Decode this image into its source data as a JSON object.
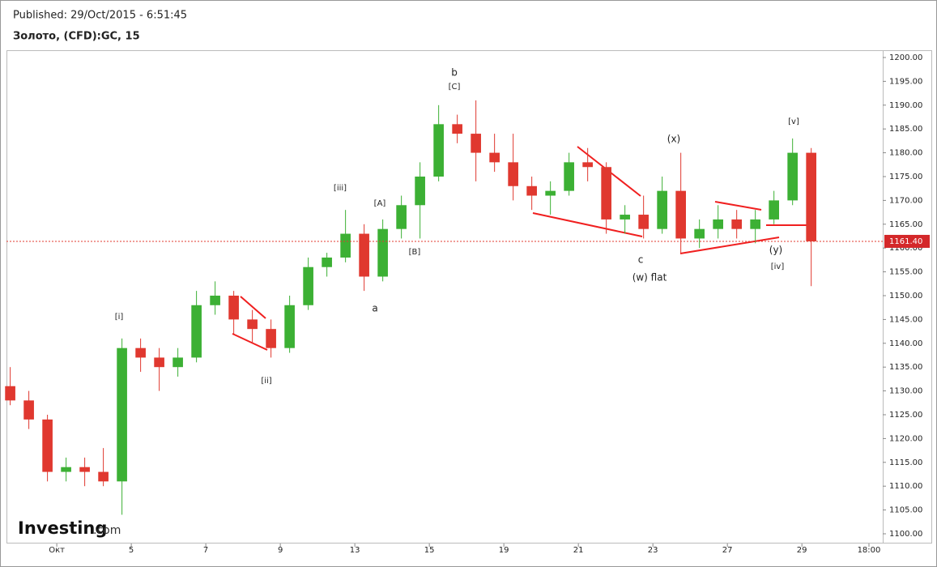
{
  "chart_data": {
    "type": "candlestick",
    "published": "Published: 29/Oct/2015 - 6:51:45",
    "title": "Золото, (CFD):GC, 15",
    "logo": {
      "name": "Investing",
      "suffix": ".com"
    },
    "up_color": "#3cb034",
    "down_color": "#e0382f",
    "x": [
      -1.25,
      -0.75,
      -0.25,
      0.25,
      0.75,
      1.25,
      1.75,
      2.25,
      2.75,
      3.25,
      3.75,
      4.25,
      4.75,
      5.25,
      5.75,
      6.25,
      6.75,
      7.25,
      7.75,
      8.25,
      8.75,
      9.25,
      9.75,
      10.25,
      10.75,
      11.25,
      11.75,
      12.25,
      12.75,
      13.25,
      13.75,
      14.25,
      14.75,
      15.25,
      15.75,
      16.25,
      16.75,
      17.25,
      17.75,
      18.25,
      18.75,
      19.25,
      19.75,
      20.25
    ],
    "open": [
      1131,
      1128,
      1124,
      1113,
      1114,
      1113,
      1111,
      1139,
      1137,
      1135,
      1137,
      1148,
      1150,
      1145,
      1143,
      1139,
      1148,
      1156,
      1158,
      1163,
      1154,
      1164,
      1169,
      1175,
      1186,
      1184,
      1180,
      1178,
      1173,
      1171,
      1172,
      1178,
      1177,
      1166,
      1167,
      1164,
      1172,
      1162,
      1164,
      1166,
      1164,
      1166,
      1170,
      1180
    ],
    "high": [
      1135,
      1130,
      1125,
      1116,
      1116,
      1118,
      1141,
      1141,
      1139,
      1139,
      1151,
      1153,
      1151,
      1147,
      1145,
      1150,
      1158,
      1159,
      1168,
      1165,
      1166,
      1171,
      1178,
      1190,
      1188,
      1191,
      1184,
      1184,
      1175,
      1174,
      1180,
      1181,
      1178,
      1169,
      1171,
      1175,
      1180,
      1166,
      1169,
      1168,
      1168,
      1172,
      1183,
      1181
    ],
    "low": [
      1127,
      1122,
      1111,
      1111,
      1110,
      1110,
      1104,
      1134,
      1130,
      1133,
      1136,
      1146,
      1142,
      1140,
      1137,
      1138,
      1147,
      1154,
      1157,
      1151,
      1153,
      1162,
      1162,
      1174,
      1182,
      1174,
      1176,
      1170,
      1168,
      1167,
      1171,
      1174,
      1163,
      1163,
      1162,
      1163,
      1159,
      1160,
      1162,
      1162,
      1161,
      1165,
      1169,
      1152
    ],
    "close": [
      1128,
      1124,
      1113,
      1114,
      1113,
      1111,
      1139,
      1137,
      1135,
      1137,
      1148,
      1150,
      1145,
      1143,
      1139,
      1148,
      1156,
      1158,
      1163,
      1154,
      1164,
      1169,
      1175,
      1186,
      1184,
      1180,
      1178,
      1173,
      1171,
      1172,
      1178,
      1177,
      1166,
      1167,
      1164,
      1172,
      1162,
      1164,
      1166,
      1164,
      1166,
      1170,
      1180,
      1161.4
    ],
    "last_price": {
      "value": 1161.4,
      "label": "1161.40"
    },
    "xlim": [
      -1.35,
      22.17
    ],
    "xticks": [
      {
        "value": 0,
        "label": "Окт"
      },
      {
        "value": 2,
        "label": "5"
      },
      {
        "value": 4,
        "label": "7"
      },
      {
        "value": 6,
        "label": "9"
      },
      {
        "value": 8,
        "label": "13"
      },
      {
        "value": 10,
        "label": "15"
      },
      {
        "value": 12,
        "label": "19"
      },
      {
        "value": 14,
        "label": "21"
      },
      {
        "value": 16,
        "label": "23"
      },
      {
        "value": 18,
        "label": "27"
      },
      {
        "value": 20,
        "label": "29"
      },
      {
        "value": 21.8,
        "label": "18:00"
      }
    ],
    "ylim": [
      1097.96,
      1201.53
    ],
    "yticks": [
      {
        "value": 1100,
        "label": "1100.00"
      },
      {
        "value": 1105,
        "label": "1105.00"
      },
      {
        "value": 1110,
        "label": "1110.00"
      },
      {
        "value": 1115,
        "label": "1115.00"
      },
      {
        "value": 1120,
        "label": "1120.00"
      },
      {
        "value": 1125,
        "label": "1125.00"
      },
      {
        "value": 1130,
        "label": "1130.00"
      },
      {
        "value": 1135,
        "label": "1135.00"
      },
      {
        "value": 1140,
        "label": "1140.00"
      },
      {
        "value": 1145,
        "label": "1145.00"
      },
      {
        "value": 1150,
        "label": "1150.00"
      },
      {
        "value": 1155,
        "label": "1155.00"
      },
      {
        "value": 1160,
        "label": "1160.00"
      },
      {
        "value": 1165,
        "label": "1165.00"
      },
      {
        "value": 1170,
        "label": "1170.00"
      },
      {
        "value": 1175,
        "label": "1175.00"
      },
      {
        "value": 1180,
        "label": "1180.00"
      },
      {
        "value": 1185,
        "label": "1185.00"
      },
      {
        "value": 1190,
        "label": "1190.00"
      },
      {
        "value": 1195,
        "label": "1195.00"
      },
      {
        "value": 1200,
        "label": "1200.00"
      }
    ],
    "annotations": [
      "b",
      "[C]",
      "(x)",
      "[v]",
      "[iii]",
      "[A]",
      "[B]",
      "[i]",
      "a",
      "[ii]",
      "c",
      "(w) flat",
      "(y)",
      "[iv]"
    ]
  }
}
